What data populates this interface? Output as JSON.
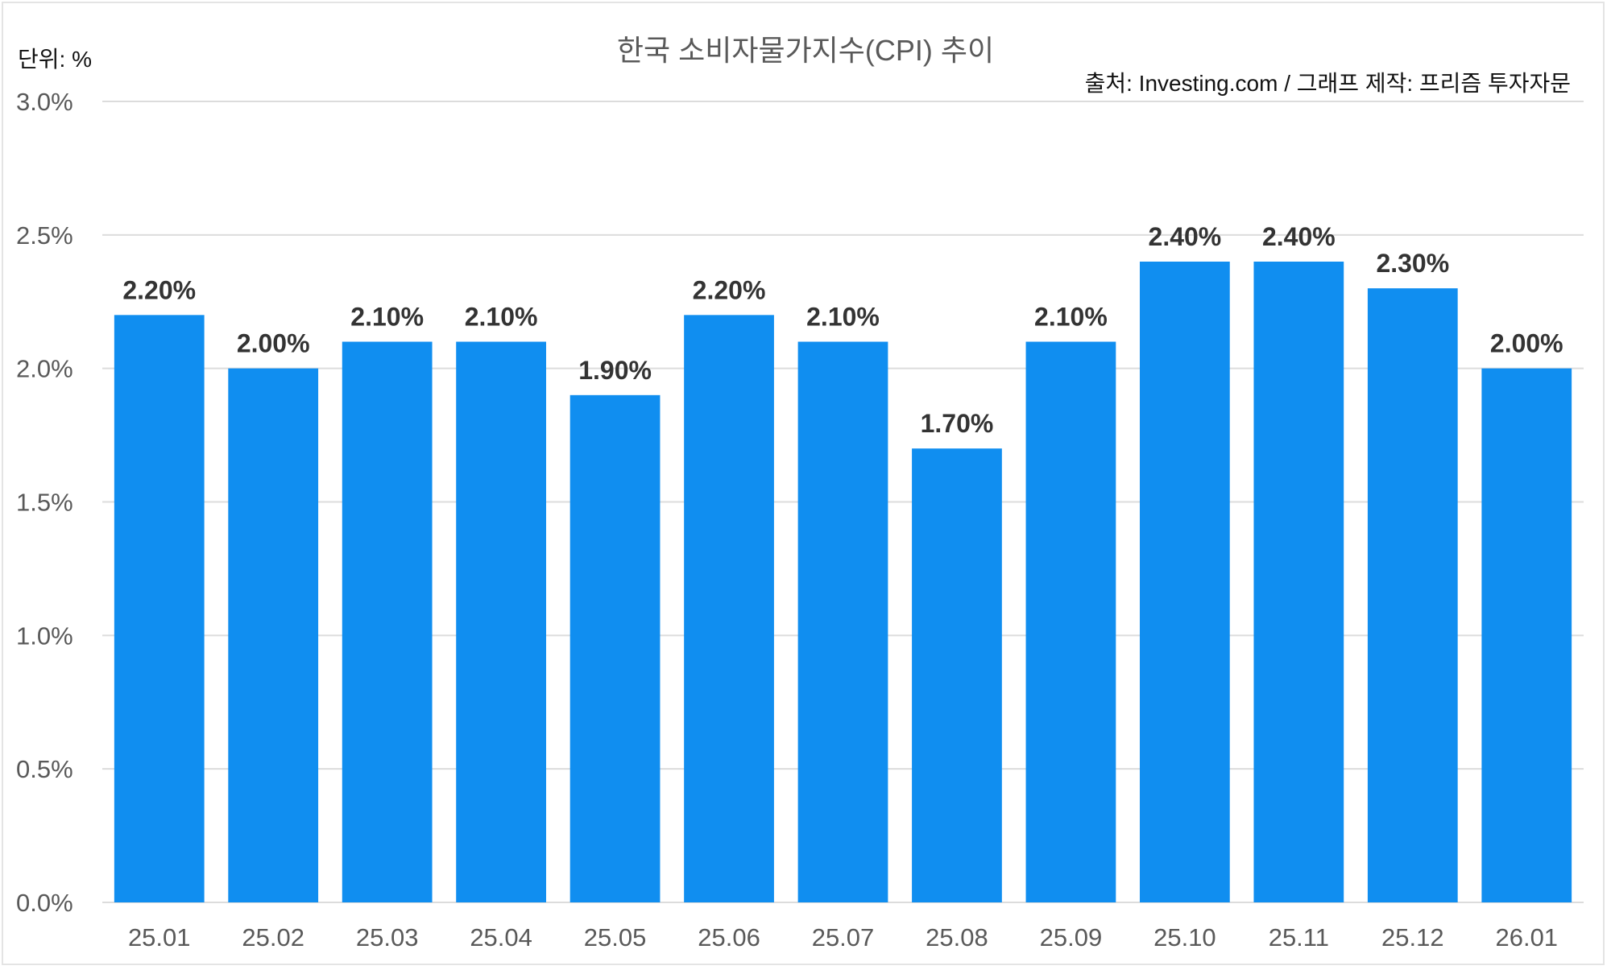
{
  "chart_data": {
    "type": "bar",
    "title": "한국 소비자물가지수(CPI) 추이",
    "unit_label": "단위: %",
    "source": "출처: Investing.com / 그래프 제작: 프리즘 투자자문",
    "categories": [
      "25.01",
      "25.02",
      "25.03",
      "25.04",
      "25.05",
      "25.06",
      "25.07",
      "25.08",
      "25.09",
      "25.10",
      "25.11",
      "25.12",
      "26.01"
    ],
    "values": [
      2.2,
      2.0,
      2.1,
      2.1,
      1.9,
      2.2,
      2.1,
      1.7,
      2.1,
      2.4,
      2.4,
      2.3,
      2.0
    ],
    "data_labels": [
      "2.20%",
      "2.00%",
      "2.10%",
      "2.10%",
      "1.90%",
      "2.20%",
      "2.10%",
      "1.70%",
      "2.10%",
      "2.40%",
      "2.40%",
      "2.30%",
      "2.00%"
    ],
    "yticks": [
      "0.0%",
      "0.5%",
      "1.0%",
      "1.5%",
      "2.0%",
      "2.5%",
      "3.0%"
    ],
    "ylim": [
      0,
      3.0
    ],
    "grid": true,
    "xlabel": "",
    "ylabel": "",
    "colors": {
      "bar": "#108ef0",
      "grid": "#dcdcdc",
      "tick": "#595959",
      "label": "#333333"
    }
  }
}
